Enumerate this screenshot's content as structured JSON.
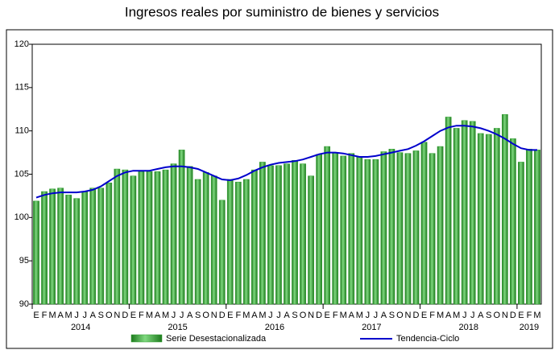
{
  "chart_data": {
    "type": "bar_line",
    "title": "Ingresos reales por suministro de bienes y servicios",
    "categories": [
      "E",
      "F",
      "M",
      "A",
      "M",
      "J",
      "J",
      "A",
      "S",
      "O",
      "N",
      "D",
      "E",
      "F",
      "M",
      "A",
      "M",
      "J",
      "J",
      "A",
      "S",
      "O",
      "N",
      "D",
      "E",
      "F",
      "M",
      "A",
      "M",
      "J",
      "J",
      "A",
      "S",
      "O",
      "N",
      "D",
      "E",
      "F",
      "M",
      "A",
      "M",
      "J",
      "J",
      "A",
      "S",
      "O",
      "N",
      "D",
      "E",
      "F",
      "M",
      "A",
      "M",
      "J",
      "J",
      "A",
      "S",
      "O",
      "N",
      "D",
      "E",
      "F",
      "M"
    ],
    "year_labels": [
      "2014",
      "2015",
      "2016",
      "2017",
      "2018",
      "2019"
    ],
    "ylim": [
      90,
      120
    ],
    "yticks": [
      90,
      95,
      100,
      105,
      110,
      115,
      120
    ],
    "series": [
      {
        "name": "Serie Desestacionalizada",
        "kind": "bar",
        "color": "#2e9e2e",
        "values": [
          101.9,
          103.0,
          103.3,
          103.4,
          102.6,
          102.2,
          103.0,
          103.4,
          103.4,
          104.0,
          105.6,
          105.5,
          104.8,
          105.3,
          105.3,
          105.3,
          105.5,
          106.2,
          107.8,
          105.9,
          104.4,
          105.2,
          104.8,
          102.0,
          104.4,
          104.1,
          104.4,
          105.5,
          106.4,
          106.0,
          106.0,
          106.2,
          106.6,
          106.2,
          104.8,
          107.3,
          108.2,
          107.5,
          107.1,
          107.4,
          107.0,
          106.7,
          106.7,
          107.6,
          107.9,
          107.5,
          107.4,
          107.7,
          108.7,
          107.4,
          108.2,
          111.6,
          110.3,
          111.2,
          111.1,
          109.7,
          109.6,
          110.3,
          111.9,
          109.1,
          106.4,
          107.9,
          107.8
        ]
      },
      {
        "name": "Tendencia-Ciclo",
        "kind": "line",
        "color": "#0000cc",
        "values": [
          102.3,
          102.6,
          102.8,
          102.9,
          102.9,
          102.9,
          103.0,
          103.2,
          103.6,
          104.2,
          104.8,
          105.2,
          105.4,
          105.4,
          105.4,
          105.6,
          105.8,
          105.9,
          105.9,
          105.8,
          105.6,
          105.2,
          104.8,
          104.4,
          104.3,
          104.5,
          104.9,
          105.4,
          105.8,
          106.1,
          106.3,
          106.4,
          106.5,
          106.7,
          107.0,
          107.3,
          107.5,
          107.5,
          107.4,
          107.2,
          107.0,
          107.0,
          107.1,
          107.3,
          107.5,
          107.7,
          107.9,
          108.3,
          108.8,
          109.4,
          110.0,
          110.4,
          110.6,
          110.6,
          110.5,
          110.3,
          110.0,
          109.6,
          109.1,
          108.5,
          108.0,
          107.8,
          107.8
        ]
      }
    ]
  }
}
